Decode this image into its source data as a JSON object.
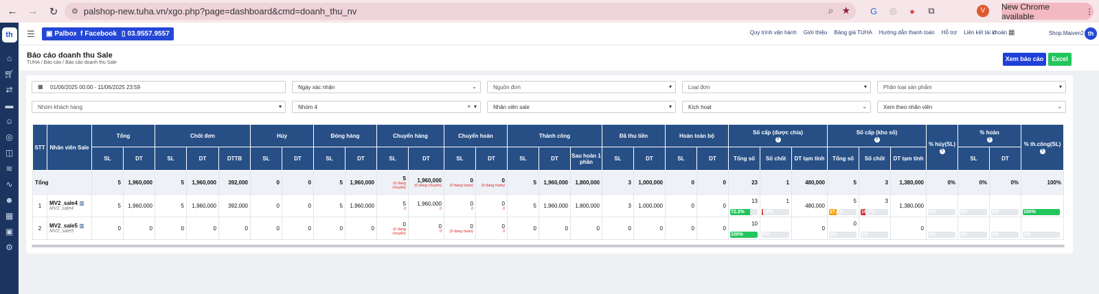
{
  "browser": {
    "url": "palshop-new.tuha.vn/xgo.php?page=dashboard&cmd=doanh_thu_nv",
    "new_chrome": "New Chrome available",
    "profile": "V"
  },
  "topbar": {
    "palbox": "Palbox",
    "facebook": "Facebook",
    "phone": "03.9557.9557",
    "links": [
      "Quy trình vận hành",
      "Giới thiệu",
      "Bảng giá TUHA",
      "Hướng dẫn thanh toán",
      "Hỗ trợ",
      "Liên kết tài khoản"
    ],
    "shop": "Shop.Maiven2",
    "logo": "th"
  },
  "page": {
    "title": "Báo cáo doanh thu Sale",
    "crumbs": [
      "TUHA",
      "/",
      "Báo cáo",
      "/",
      "Báo cáo doanh thu Sale"
    ],
    "btn_view": "Xem báo cáo",
    "btn_excel": "Excel"
  },
  "filters": {
    "date_range": "01/06/2025 00:00 - 11/06/2025 23:59",
    "date_type": "Ngày xác nhận",
    "source": "Nguồn đơn",
    "order_type": "Loại đơn",
    "product_class": "Phân loại sản phẩm",
    "customer_group": "Nhóm khách hàng",
    "group": "Nhóm 4",
    "staff": "Nhân viên sale",
    "status": "Kích hoạt",
    "view_by": "Xem theo nhân viên"
  },
  "table": {
    "headers": {
      "stt": "STT",
      "staff": "Nhân viên Sale",
      "tong": "Tổng",
      "chot": "Chốt đơn",
      "huy": "Hủy",
      "dong": "Đóng hàng",
      "chuyen": "Chuyển hàng",
      "chuyenhoan": "Chuyển hoàn",
      "thanhcong": "Thành công",
      "dathu": "Đã thu tiền",
      "hoantoanbo": "Hoàn toàn bộ",
      "socap_chia": "Số cấp (được chia)",
      "socap_kho": "Số cấp (kho số)",
      "pct_huy": "% hủy(SL)",
      "pct_hoan": "% hoàn",
      "pct_tc": "% th.công(SL)"
    },
    "sub": {
      "sl": "SL",
      "dt": "DT",
      "dttb": "DTTB",
      "sauhoan": "Sau hoàn 1 phần",
      "tongso": "Tổng số",
      "sochot": "Số chốt",
      "dttamtinh": "DT tạm tính"
    },
    "total": {
      "label": "Tổng",
      "c": [
        "5",
        "1,960,000",
        "5",
        "1,960,000",
        "392,000",
        "0",
        "0",
        "5",
        "1,960,000",
        "5",
        "1,960,000",
        "0",
        "0",
        "5",
        "1,960,000",
        "1,800,000",
        "3",
        "1,000,000",
        "0",
        "0",
        "23",
        "1",
        "480,000",
        "5",
        "3",
        "1,380,000",
        "0%",
        "0%",
        "0%",
        "100%"
      ],
      "notes": {
        "chuyen_sl": "(0 đang chuyển)",
        "chuyen_dt": "(0 đang chuyển)",
        "hoan_sl": "(0 đang hoàn)",
        "hoan_dt": "(0 đang hoàn)"
      }
    },
    "rows": [
      {
        "stt": "1",
        "name": "MV2_sale4",
        "code": "MV2_sale4",
        "c": [
          "5",
          "1,960,000",
          "5",
          "1,960,000",
          "392,000",
          "0",
          "0",
          "5",
          "1,960,000",
          "5",
          "1,960,000",
          "0",
          "0",
          "5",
          "1,960,000",
          "1,800,000",
          "3",
          "1,000,000",
          "0",
          "0",
          "13",
          "1",
          "480,000",
          "5",
          "3",
          "1,380,000"
        ],
        "chuyen_notes": [
          "0",
          "0"
        ],
        "hoan_notes": [
          "0",
          "0"
        ],
        "bars": {
          "tongso_chia": {
            "label": "72.2%",
            "value": 72.2
          },
          "sochot_chia": {
            "label": "5.6%",
            "value": 5.6
          },
          "tongso_kho": {
            "label": "27.8%",
            "value": 27.8
          },
          "sochot_kho": {
            "label": "16.7%",
            "value": 16.7
          },
          "huy": {
            "label": "0%",
            "value": 0
          },
          "hoan_sl": {
            "label": "0%",
            "value": 0
          },
          "hoan_dt": {
            "label": "0%",
            "value": 0
          },
          "tc": {
            "label": "100%",
            "value": 100
          }
        }
      },
      {
        "stt": "2",
        "name": "MV2_sale5",
        "code": "MV2_sale5",
        "c": [
          "0",
          "0",
          "0",
          "0",
          "0",
          "0",
          "0",
          "0",
          "0",
          "0",
          "0",
          "0",
          "0",
          "0",
          "0",
          "0",
          "0",
          "0",
          "0",
          "0",
          "10",
          "",
          "0",
          "0",
          "",
          "0"
        ],
        "chuyen_notes": [
          "(0 đang chuyển)",
          "0"
        ],
        "hoan_notes": [
          "(0 đang hoàn)",
          "0"
        ],
        "bars": {
          "tongso_chia": {
            "label": "100%",
            "value": 100
          },
          "sochot_chia": {
            "label": "0%",
            "value": 0
          },
          "tongso_kho": {
            "label": "0%",
            "value": 0
          },
          "sochot_kho": {
            "label": "0%",
            "value": 0
          },
          "huy": {
            "label": "0%",
            "value": 0
          },
          "hoan_sl": {
            "label": "0%",
            "value": 0
          },
          "hoan_dt": {
            "label": "0%",
            "value": 0
          },
          "tc": {
            "label": "0%",
            "value": 0
          }
        }
      }
    ]
  },
  "colors": {
    "sidebar": "#1c3560",
    "header": "#274f86",
    "primary": "#1e40d8",
    "green": "#22c55e",
    "orange": "#f59e0b",
    "red": "#dc2626"
  }
}
